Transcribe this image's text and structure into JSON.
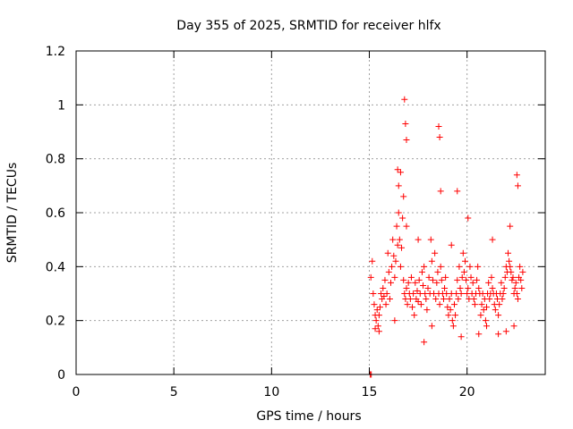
{
  "chart_data": {
    "type": "scatter",
    "title": "Day 355 of 2025, SRMTID for receiver hlfx",
    "xlabel": "GPS time / hours",
    "ylabel": "SRMTID / TECUs",
    "xlim": [
      0,
      24
    ],
    "ylim": [
      0,
      1.2
    ],
    "x_ticks": [
      0,
      5,
      10,
      15,
      20
    ],
    "x_tick_labels": [
      "0",
      "5",
      "10",
      "15",
      "20"
    ],
    "y_ticks": [
      0,
      0.2,
      0.4,
      0.6,
      0.8,
      1.0,
      1.2
    ],
    "y_tick_labels": [
      "0",
      "0.2",
      "0.4",
      "0.6",
      "0.8",
      "1",
      "1.2"
    ],
    "grid": true,
    "marker": "+",
    "series_color": "#ff0000",
    "series": [
      {
        "name": "SRMTID",
        "x": [
          15.05,
          15.08,
          15.15,
          15.2,
          15.25,
          15.3,
          15.35,
          15.4,
          15.45,
          15.5,
          15.55,
          15.6,
          15.65,
          15.7,
          15.75,
          15.8,
          15.85,
          15.9,
          15.95,
          16.0,
          16.05,
          16.1,
          16.15,
          16.2,
          16.25,
          16.3,
          16.35,
          16.4,
          16.45,
          16.5,
          16.55,
          16.6,
          16.65,
          16.7,
          16.75,
          16.8,
          16.85,
          16.9,
          16.95,
          17.0,
          17.05,
          17.1,
          17.15,
          17.2,
          17.25,
          17.3,
          17.35,
          17.4,
          17.45,
          17.5,
          17.55,
          17.6,
          17.65,
          17.7,
          17.75,
          17.8,
          17.85,
          17.9,
          17.95,
          18.0,
          18.05,
          18.1,
          18.15,
          18.2,
          18.25,
          18.3,
          18.35,
          18.4,
          18.45,
          18.5,
          18.55,
          18.6,
          18.65,
          18.7,
          18.75,
          18.8,
          18.85,
          18.9,
          18.95,
          19.0,
          19.05,
          19.1,
          19.15,
          19.2,
          19.25,
          19.3,
          19.35,
          19.4,
          19.45,
          19.5,
          19.55,
          19.6,
          19.65,
          19.7,
          19.75,
          19.8,
          19.85,
          19.9,
          19.95,
          20.0,
          20.05,
          20.1,
          20.15,
          20.2,
          20.25,
          20.3,
          20.35,
          20.4,
          20.45,
          20.5,
          20.55,
          20.6,
          20.65,
          20.7,
          20.75,
          20.8,
          20.85,
          20.9,
          20.95,
          21.0,
          21.05,
          21.1,
          21.15,
          21.2,
          21.25,
          21.3,
          21.35,
          21.4,
          21.45,
          21.5,
          21.55,
          21.6,
          21.65,
          21.7,
          21.75,
          21.8,
          21.85,
          21.9,
          21.95,
          22.0,
          22.05,
          22.1,
          22.15,
          22.2,
          22.25,
          22.3,
          22.35,
          22.4,
          22.45,
          22.5,
          22.55,
          22.6,
          22.65,
          22.7,
          22.75,
          22.8,
          22.85,
          16.8,
          16.85,
          16.9,
          16.6,
          16.45,
          18.55,
          18.6,
          16.5,
          22.55,
          22.6,
          16.75,
          18.65,
          19.5,
          20.05,
          16.9,
          17.5,
          19.2,
          21.3,
          22.2,
          15.3,
          15.5,
          16.3,
          17.8,
          18.2,
          19.7,
          20.6,
          21.0,
          21.6,
          22.0,
          22.4,
          15.1
        ],
        "y": [
          0.0,
          0.36,
          0.42,
          0.3,
          0.26,
          0.22,
          0.2,
          0.24,
          0.18,
          0.22,
          0.25,
          0.3,
          0.28,
          0.32,
          0.29,
          0.35,
          0.26,
          0.3,
          0.45,
          0.38,
          0.28,
          0.34,
          0.4,
          0.5,
          0.44,
          0.36,
          0.42,
          0.55,
          0.48,
          0.6,
          0.5,
          0.4,
          0.47,
          0.58,
          0.35,
          0.3,
          0.28,
          0.32,
          0.26,
          0.34,
          0.3,
          0.28,
          0.36,
          0.25,
          0.3,
          0.22,
          0.34,
          0.28,
          0.31,
          0.27,
          0.35,
          0.3,
          0.26,
          0.38,
          0.33,
          0.4,
          0.3,
          0.28,
          0.24,
          0.32,
          0.36,
          0.3,
          0.5,
          0.42,
          0.35,
          0.3,
          0.45,
          0.28,
          0.34,
          0.38,
          0.3,
          0.26,
          0.4,
          0.35,
          0.3,
          0.28,
          0.32,
          0.36,
          0.3,
          0.25,
          0.22,
          0.28,
          0.24,
          0.3,
          0.2,
          0.18,
          0.26,
          0.22,
          0.3,
          0.35,
          0.28,
          0.4,
          0.32,
          0.3,
          0.36,
          0.45,
          0.38,
          0.42,
          0.35,
          0.3,
          0.32,
          0.28,
          0.4,
          0.36,
          0.3,
          0.34,
          0.28,
          0.26,
          0.3,
          0.35,
          0.4,
          0.32,
          0.3,
          0.22,
          0.26,
          0.3,
          0.24,
          0.28,
          0.2,
          0.25,
          0.3,
          0.34,
          0.28,
          0.3,
          0.36,
          0.32,
          0.3,
          0.26,
          0.24,
          0.3,
          0.28,
          0.22,
          0.26,
          0.3,
          0.34,
          0.28,
          0.3,
          0.32,
          0.36,
          0.4,
          0.38,
          0.45,
          0.42,
          0.4,
          0.38,
          0.35,
          0.36,
          0.3,
          0.32,
          0.34,
          0.3,
          0.28,
          0.36,
          0.4,
          0.35,
          0.32,
          0.38,
          1.02,
          0.93,
          0.87,
          0.75,
          0.76,
          0.92,
          0.88,
          0.7,
          0.74,
          0.7,
          0.66,
          0.68,
          0.68,
          0.58,
          0.55,
          0.5,
          0.48,
          0.5,
          0.55,
          0.17,
          0.16,
          0.2,
          0.12,
          0.18,
          0.14,
          0.15,
          0.18,
          0.15,
          0.16,
          0.18,
          0.0
        ]
      }
    ]
  }
}
